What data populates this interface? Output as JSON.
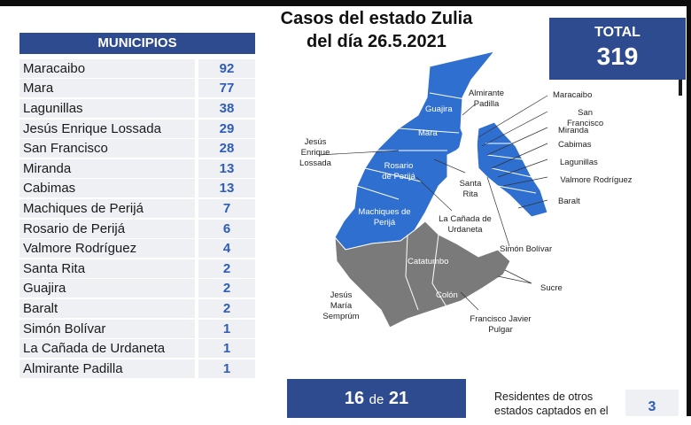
{
  "title_line1": "Casos del estado Zulia",
  "title_line2": "del día 26.5.2021",
  "total": {
    "label": "TOTAL",
    "value": "319"
  },
  "municipios_header": "MUNICIPIOS",
  "municipios": [
    {
      "name": "Maracaibo",
      "value": "92"
    },
    {
      "name": "Mara",
      "value": "77"
    },
    {
      "name": "Lagunillas",
      "value": "38"
    },
    {
      "name": "Jesús Enrique Lossada",
      "value": "29"
    },
    {
      "name": "San Francisco",
      "value": "28"
    },
    {
      "name": "Miranda",
      "value": "13"
    },
    {
      "name": "Cabimas",
      "value": "13"
    },
    {
      "name": "Machiques de Perijá",
      "value": "7"
    },
    {
      "name": "Rosario de Perijá",
      "value": "6"
    },
    {
      "name": "Valmore Rodríguez",
      "value": "4"
    },
    {
      "name": "Santa Rita",
      "value": "2"
    },
    {
      "name": "Guajira",
      "value": "2"
    },
    {
      "name": "Baralt",
      "value": "2"
    },
    {
      "name": "Simón Bolívar",
      "value": "1"
    },
    {
      "name": "La Cañada de Urdaneta",
      "value": "1"
    },
    {
      "name": "Almirante Padilla",
      "value": "1"
    }
  ],
  "map_labels": {
    "guajira": "Guajira",
    "almirante_padilla": "Almirante Padilla",
    "maracaibo": "Maracaibo",
    "san_francisco": "San Francisco",
    "mara": "Mara",
    "miranda": "Miranda",
    "cabimas": "Cabimas",
    "jesus_enrique_lossada": "Jesús Enrique Lossada",
    "lagunillas": "Lagunillas",
    "rosario_de_perija": "Rosario de Perijá",
    "valmore_rodriguez": "Valmore Rodríguez",
    "santa_rita": "Santa Rita",
    "baralt": "Baralt",
    "machiques_de_perija": "Machiques de Perijá",
    "la_canada_de_urdaneta": "La Cañada de Urdaneta",
    "simon_bolivar": "Simón Bolívar",
    "catatumbo": "Catatumbo",
    "sucre": "Sucre",
    "jesus_maria_semprum": "Jesús María Semprúm",
    "colon": "Colón",
    "francisco_javier_pulgar": "Francisco Javier Pulgar"
  },
  "bottom": {
    "count": "16",
    "de": "de",
    "total": "21"
  },
  "residentes": {
    "text": "Residentes de otros estados captados en el",
    "value": "3"
  },
  "colors": {
    "primary": "#2f4b8f",
    "map_blue": "#2f6fcf",
    "map_gray": "#7a7a7a",
    "value_blue": "#2e5cb8"
  }
}
